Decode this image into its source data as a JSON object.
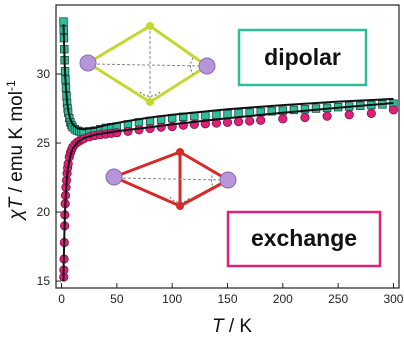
{
  "chart_data": {
    "type": "scatter",
    "xlabel": {
      "italic": "T",
      "rest": " / K"
    },
    "ylabel": {
      "italic": "χT",
      "rest": " / emu K mol",
      "sup": "-1"
    },
    "xlim": [
      -5,
      305
    ],
    "ylim": [
      14.5,
      35
    ],
    "xticks": [
      0,
      50,
      100,
      150,
      200,
      250,
      300
    ],
    "yticks": [
      15,
      20,
      25,
      30
    ],
    "annotations": {
      "dipolar": "dipolar",
      "exchange": "exchange"
    },
    "series": [
      {
        "marker": "square",
        "color": "#2bbf9a",
        "x": [
          1.8,
          2,
          2.2,
          2.5,
          2.8,
          3.2,
          3.6,
          4,
          4.5,
          5,
          5.5,
          6,
          7,
          8,
          9,
          10,
          12,
          14,
          16,
          18,
          20,
          25,
          30,
          35,
          40,
          45,
          50,
          60,
          70,
          80,
          90,
          100,
          110,
          120,
          130,
          140,
          150,
          160,
          170,
          180,
          190,
          200,
          210,
          220,
          230,
          240,
          250,
          260,
          270,
          280,
          290,
          300
        ],
        "values": [
          33.8,
          33.2,
          32.6,
          31.8,
          31.0,
          30.2,
          29.6,
          29.0,
          28.4,
          27.9,
          27.5,
          27.2,
          26.8,
          26.5,
          26.3,
          26.15,
          26.0,
          25.9,
          25.85,
          25.8,
          25.8,
          25.85,
          25.9,
          26.0,
          26.1,
          26.15,
          26.2,
          26.35,
          26.5,
          26.6,
          26.7,
          26.8,
          26.9,
          26.95,
          27.0,
          27.05,
          27.1,
          27.15,
          27.2,
          27.25,
          27.3,
          27.35,
          27.4,
          27.45,
          27.5,
          27.55,
          27.6,
          27.65,
          27.7,
          27.75,
          27.8,
          27.85
        ]
      },
      {
        "marker": "circle",
        "color": "#e0207a",
        "x": [
          2,
          2.1,
          2.3,
          2.5,
          2.8,
          3,
          3.3,
          3.6,
          4,
          4.5,
          5,
          5.5,
          6,
          7,
          8,
          9,
          10,
          12,
          14,
          16,
          18,
          20,
          25,
          30,
          35,
          40,
          45,
          50,
          60,
          70,
          80,
          90,
          100,
          110,
          120,
          130,
          140,
          150,
          160,
          170,
          180,
          200,
          220,
          240,
          260,
          280,
          300
        ],
        "values": [
          15.3,
          15.8,
          16.6,
          17.8,
          19.0,
          19.8,
          20.6,
          21.2,
          21.8,
          22.3,
          22.8,
          23.2,
          23.5,
          24.0,
          24.3,
          24.5,
          24.7,
          24.9,
          25.05,
          25.15,
          25.25,
          25.3,
          25.45,
          25.55,
          25.6,
          25.65,
          25.7,
          25.75,
          25.85,
          25.95,
          26.05,
          26.15,
          26.2,
          26.3,
          26.35,
          26.4,
          26.45,
          26.5,
          26.55,
          26.6,
          26.65,
          26.75,
          26.85,
          26.95,
          27.05,
          27.15,
          27.4
        ]
      }
    ],
    "fits": [
      {
        "color": "#111111",
        "x": [
          1.8,
          2.5,
          3,
          4,
          5,
          6,
          8,
          10,
          15,
          20,
          30,
          40,
          60,
          80,
          100,
          150,
          200,
          250,
          300
        ],
        "values": [
          33.6,
          31.6,
          30.3,
          28.9,
          28.0,
          27.35,
          26.7,
          26.35,
          26.05,
          26.0,
          26.1,
          26.3,
          26.6,
          26.85,
          27.05,
          27.45,
          27.75,
          28.0,
          28.2
        ]
      },
      {
        "color": "#111111",
        "x": [
          1.8,
          2,
          2.5,
          3,
          3.5,
          4,
          5,
          6,
          8,
          10,
          15,
          20,
          30,
          50,
          80,
          100,
          150,
          200,
          250,
          300
        ],
        "values": [
          15.0,
          16.2,
          18.2,
          19.7,
          20.7,
          21.5,
          22.6,
          23.3,
          24.1,
          24.6,
          25.1,
          25.35,
          25.6,
          25.85,
          26.15,
          26.35,
          26.8,
          27.2,
          27.55,
          27.9
        ]
      }
    ]
  }
}
